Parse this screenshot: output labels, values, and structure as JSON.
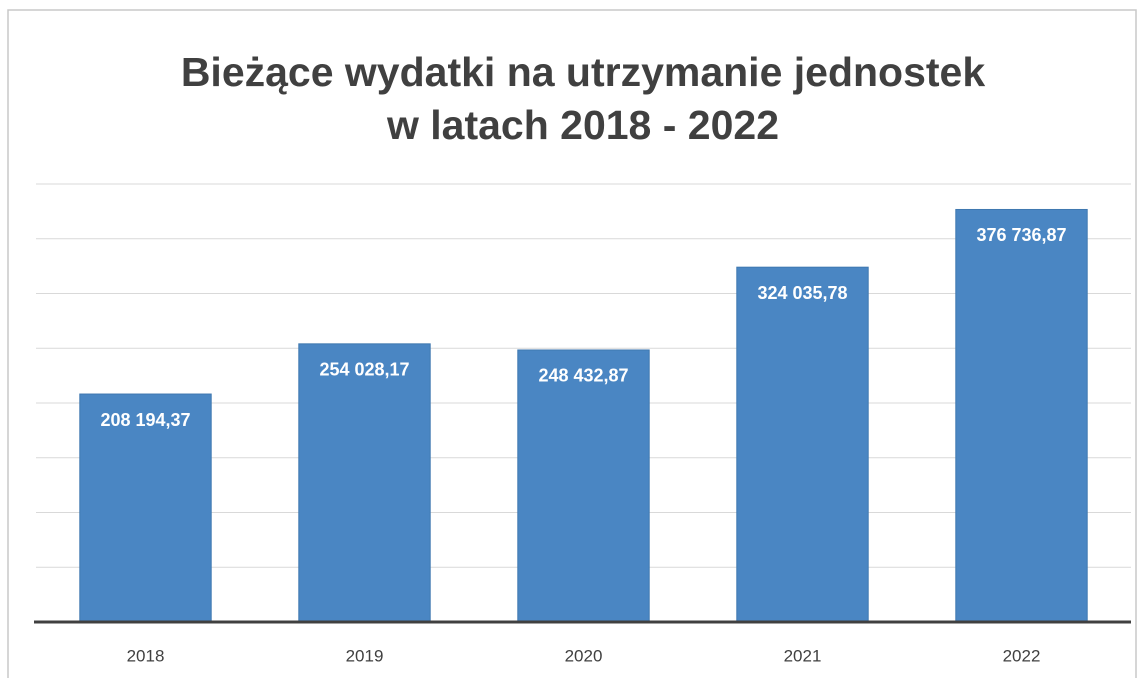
{
  "chart_data": {
    "type": "bar",
    "title": [
      "Bieżące wydatki na utrzymanie jednostek",
      "w latach 2018 - 2022"
    ],
    "categories": [
      "2018",
      "2019",
      "2020",
      "2021",
      "2022"
    ],
    "values": [
      208194.37,
      254028.17,
      248432.87,
      324035.78,
      376736.87
    ],
    "value_labels": [
      "208 194,37",
      "254 028,17",
      "248 432,87",
      "324 035,78",
      "376 736,87"
    ],
    "color": "#4a86c3",
    "ylim": [
      0,
      400000
    ],
    "yticks": [
      0,
      50000,
      100000,
      150000,
      200000,
      250000,
      300000,
      350000,
      400000
    ],
    "grid": true
  }
}
